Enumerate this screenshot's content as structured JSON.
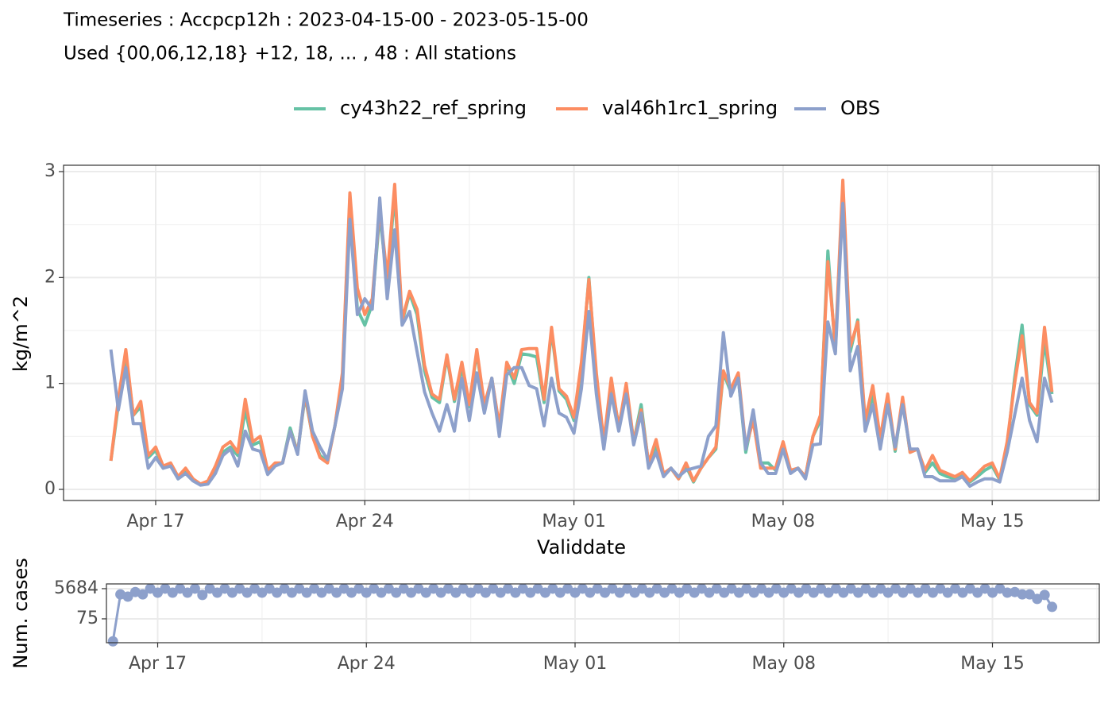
{
  "chart_data": [
    {
      "type": "line",
      "title": "Timeseries : Accpcp12h : 2023-04-15-00 - 2023-05-15-00",
      "subtitle": "Used {00,06,12,18} +12, 18, ... , 48 : All stations",
      "xlabel": "Validdate",
      "ylabel": "kg/m^2",
      "grid": true,
      "legend": "top",
      "x": [
        "2023-04-15 12:00",
        "2023-04-15 18:00",
        "2023-04-16 00:00",
        "2023-04-16 06:00",
        "2023-04-16 12:00",
        "2023-04-16 18:00",
        "2023-04-17 00:00",
        "2023-04-17 06:00",
        "2023-04-17 12:00",
        "2023-04-17 18:00",
        "2023-04-18 00:00",
        "2023-04-18 06:00",
        "2023-04-18 12:00",
        "2023-04-18 18:00",
        "2023-04-19 00:00",
        "2023-04-19 06:00",
        "2023-04-19 12:00",
        "2023-04-19 18:00",
        "2023-04-20 00:00",
        "2023-04-20 06:00",
        "2023-04-20 12:00",
        "2023-04-20 18:00",
        "2023-04-21 00:00",
        "2023-04-21 06:00",
        "2023-04-21 12:00",
        "2023-04-21 18:00",
        "2023-04-22 00:00",
        "2023-04-22 06:00",
        "2023-04-22 12:00",
        "2023-04-22 18:00",
        "2023-04-23 00:00",
        "2023-04-23 06:00",
        "2023-04-23 12:00",
        "2023-04-23 18:00",
        "2023-04-24 00:00",
        "2023-04-24 06:00",
        "2023-04-24 12:00",
        "2023-04-24 18:00",
        "2023-04-25 00:00",
        "2023-04-25 06:00",
        "2023-04-25 12:00",
        "2023-04-25 18:00",
        "2023-04-26 00:00",
        "2023-04-26 06:00",
        "2023-04-26 12:00",
        "2023-04-26 18:00",
        "2023-04-27 00:00",
        "2023-04-27 06:00",
        "2023-04-27 12:00",
        "2023-04-27 18:00",
        "2023-04-28 00:00",
        "2023-04-28 06:00",
        "2023-04-28 12:00",
        "2023-04-28 18:00",
        "2023-04-29 00:00",
        "2023-04-29 06:00",
        "2023-04-29 12:00",
        "2023-04-29 18:00",
        "2023-04-30 00:00",
        "2023-04-30 06:00",
        "2023-04-30 12:00",
        "2023-04-30 18:00",
        "2023-05-01 00:00",
        "2023-05-01 06:00",
        "2023-05-01 12:00",
        "2023-05-01 18:00",
        "2023-05-02 00:00",
        "2023-05-02 06:00",
        "2023-05-02 12:00",
        "2023-05-02 18:00",
        "2023-05-03 00:00",
        "2023-05-03 06:00",
        "2023-05-03 12:00",
        "2023-05-03 18:00",
        "2023-05-04 00:00",
        "2023-05-04 06:00",
        "2023-05-04 12:00",
        "2023-05-04 18:00",
        "2023-05-05 00:00",
        "2023-05-05 06:00",
        "2023-05-05 12:00",
        "2023-05-05 18:00",
        "2023-05-06 00:00",
        "2023-05-06 06:00",
        "2023-05-06 12:00",
        "2023-05-06 18:00",
        "2023-05-07 00:00",
        "2023-05-07 06:00",
        "2023-05-07 12:00",
        "2023-05-07 18:00",
        "2023-05-08 00:00",
        "2023-05-08 06:00",
        "2023-05-08 12:00",
        "2023-05-08 18:00",
        "2023-05-09 00:00",
        "2023-05-09 06:00",
        "2023-05-09 12:00",
        "2023-05-09 18:00",
        "2023-05-10 00:00",
        "2023-05-10 06:00",
        "2023-05-10 12:00",
        "2023-05-10 18:00",
        "2023-05-11 00:00",
        "2023-05-11 06:00",
        "2023-05-11 12:00",
        "2023-05-11 18:00",
        "2023-05-12 00:00",
        "2023-05-12 06:00",
        "2023-05-12 12:00",
        "2023-05-12 18:00",
        "2023-05-13 00:00",
        "2023-05-13 06:00",
        "2023-05-13 12:00",
        "2023-05-13 18:00",
        "2023-05-14 00:00",
        "2023-05-14 06:00",
        "2023-05-14 12:00",
        "2023-05-14 18:00",
        "2023-05-15 00:00",
        "2023-05-15 06:00",
        "2023-05-15 12:00",
        "2023-05-15 18:00",
        "2023-05-16 00:00",
        "2023-05-16 06:00",
        "2023-05-16 12:00",
        "2023-05-16 18:00",
        "2023-05-17 00:00"
      ],
      "series": [
        {
          "name": "cy43h22_ref_spring",
          "color": "#66c2a5",
          "values": [
            0.27,
            0.8,
            1.28,
            0.7,
            0.78,
            0.3,
            0.37,
            0.2,
            0.23,
            0.1,
            0.18,
            0.09,
            0.05,
            0.07,
            0.2,
            0.35,
            0.4,
            0.32,
            0.75,
            0.42,
            0.45,
            0.16,
            0.24,
            0.25,
            0.58,
            0.35,
            0.88,
            0.5,
            0.32,
            0.26,
            0.6,
            1.05,
            2.75,
            1.7,
            1.55,
            1.75,
            2.6,
            1.95,
            2.8,
            1.58,
            1.85,
            1.65,
            1.12,
            0.87,
            0.82,
            1.25,
            0.83,
            1.15,
            0.78,
            1.3,
            0.78,
            1.05,
            0.58,
            1.18,
            1.0,
            1.28,
            1.27,
            1.25,
            0.82,
            1.5,
            0.93,
            0.85,
            0.65,
            1.15,
            2.0,
            1.05,
            0.42,
            1.0,
            0.6,
            0.95,
            0.45,
            0.8,
            0.23,
            0.42,
            0.13,
            0.2,
            0.1,
            0.22,
            0.07,
            0.2,
            0.3,
            0.38,
            1.1,
            0.92,
            1.05,
            0.35,
            0.7,
            0.25,
            0.25,
            0.18,
            0.42,
            0.17,
            0.2,
            0.12,
            0.5,
            0.65,
            2.25,
            1.3,
            2.85,
            1.3,
            1.6,
            0.6,
            0.9,
            0.42,
            0.85,
            0.36,
            0.85,
            0.35,
            0.38,
            0.16,
            0.25,
            0.15,
            0.12,
            0.1,
            0.14,
            0.07,
            0.12,
            0.18,
            0.22,
            0.09,
            0.4,
            1.05,
            1.55,
            0.8,
            0.7,
            1.4,
            0.9
          ]
        },
        {
          "name": "val46h1rc1_spring",
          "color": "#fc8d62",
          "values": [
            0.27,
            0.85,
            1.32,
            0.7,
            0.83,
            0.32,
            0.4,
            0.22,
            0.25,
            0.12,
            0.2,
            0.1,
            0.05,
            0.08,
            0.22,
            0.4,
            0.45,
            0.35,
            0.85,
            0.45,
            0.5,
            0.18,
            0.25,
            0.25,
            0.55,
            0.35,
            0.9,
            0.5,
            0.3,
            0.25,
            0.6,
            1.1,
            2.8,
            1.9,
            1.65,
            1.8,
            2.65,
            2.0,
            2.88,
            1.6,
            1.87,
            1.7,
            1.17,
            0.9,
            0.85,
            1.27,
            0.85,
            1.2,
            0.8,
            1.32,
            0.8,
            1.05,
            0.6,
            1.2,
            1.05,
            1.32,
            1.33,
            1.33,
            0.85,
            1.53,
            0.95,
            0.88,
            0.68,
            1.2,
            1.98,
            1.1,
            0.45,
            1.05,
            0.58,
            1.0,
            0.45,
            0.75,
            0.25,
            0.47,
            0.15,
            0.2,
            0.1,
            0.25,
            0.08,
            0.2,
            0.3,
            0.4,
            1.12,
            0.95,
            1.1,
            0.4,
            0.65,
            0.2,
            0.2,
            0.2,
            0.45,
            0.18,
            0.2,
            0.12,
            0.5,
            0.7,
            2.15,
            1.35,
            2.92,
            1.35,
            1.58,
            0.65,
            0.98,
            0.48,
            0.9,
            0.38,
            0.87,
            0.35,
            0.38,
            0.18,
            0.32,
            0.18,
            0.15,
            0.12,
            0.16,
            0.08,
            0.15,
            0.22,
            0.25,
            0.1,
            0.45,
            1.0,
            1.45,
            0.82,
            0.72,
            1.53,
            0.92
          ]
        },
        {
          "name": "OBS",
          "color": "#8da0cb",
          "values": [
            1.32,
            0.75,
            1.15,
            0.62,
            0.62,
            0.2,
            0.3,
            0.2,
            0.22,
            0.1,
            0.15,
            0.08,
            0.04,
            0.05,
            0.15,
            0.32,
            0.38,
            0.22,
            0.55,
            0.38,
            0.36,
            0.14,
            0.22,
            0.25,
            0.55,
            0.33,
            0.93,
            0.55,
            0.4,
            0.28,
            0.6,
            0.95,
            2.55,
            1.65,
            1.8,
            1.7,
            2.75,
            1.8,
            2.45,
            1.55,
            1.68,
            1.3,
            0.92,
            0.72,
            0.55,
            0.8,
            0.55,
            1.05,
            0.65,
            1.1,
            0.72,
            1.05,
            0.5,
            1.08,
            1.15,
            1.15,
            0.98,
            0.95,
            0.6,
            1.05,
            0.72,
            0.68,
            0.53,
            0.95,
            1.68,
            0.9,
            0.38,
            0.9,
            0.55,
            0.9,
            0.42,
            0.72,
            0.2,
            0.35,
            0.12,
            0.2,
            0.12,
            0.18,
            0.2,
            0.22,
            0.5,
            0.6,
            1.48,
            0.88,
            1.05,
            0.38,
            0.75,
            0.25,
            0.15,
            0.15,
            0.38,
            0.15,
            0.2,
            0.1,
            0.42,
            0.43,
            1.58,
            1.28,
            2.7,
            1.12,
            1.35,
            0.55,
            0.8,
            0.38,
            0.8,
            0.4,
            0.8,
            0.38,
            0.38,
            0.12,
            0.12,
            0.08,
            0.08,
            0.08,
            0.12,
            0.03,
            0.07,
            0.1,
            0.1,
            0.07,
            0.35,
            0.7,
            1.05,
            0.65,
            0.45,
            1.05,
            0.82
          ]
        }
      ],
      "xlim": [
        "2023-04-13 22:00",
        "2023-05-18 14:00"
      ],
      "xticks": [
        {
          "value": "2023-04-17 00:00",
          "label": "Apr 17"
        },
        {
          "value": "2023-04-24 00:00",
          "label": "Apr 24"
        },
        {
          "value": "2023-05-01 00:00",
          "label": "May 01"
        },
        {
          "value": "2023-05-08 00:00",
          "label": "May 08"
        },
        {
          "value": "2023-05-15 00:00",
          "label": "May 15"
        }
      ],
      "ylim": [
        -0.105,
        3.06
      ],
      "yticks": [
        0,
        1,
        2,
        3
      ]
    },
    {
      "type": "line",
      "markers": true,
      "log": true,
      "ylabel": "Num. cases",
      "grid": true,
      "x": [
        "2023-04-15 12:00",
        "2023-04-15 18:00",
        "2023-04-16 00:00",
        "2023-04-16 06:00",
        "2023-04-16 12:00",
        "2023-04-16 18:00",
        "2023-04-17 00:00",
        "2023-04-17 06:00",
        "2023-04-17 12:00",
        "2023-04-17 18:00",
        "2023-04-18 00:00",
        "2023-04-18 06:00",
        "2023-04-18 12:00",
        "2023-04-18 18:00",
        "2023-04-19 00:00",
        "2023-04-19 06:00",
        "2023-04-19 12:00",
        "2023-04-19 18:00",
        "2023-04-20 00:00",
        "2023-04-20 06:00",
        "2023-04-20 12:00",
        "2023-04-20 18:00",
        "2023-04-21 00:00",
        "2023-04-21 06:00",
        "2023-04-21 12:00",
        "2023-04-21 18:00",
        "2023-04-22 00:00",
        "2023-04-22 06:00",
        "2023-04-22 12:00",
        "2023-04-22 18:00",
        "2023-04-23 00:00",
        "2023-04-23 06:00",
        "2023-04-23 12:00",
        "2023-04-23 18:00",
        "2023-04-24 00:00",
        "2023-04-24 06:00",
        "2023-04-24 12:00",
        "2023-04-24 18:00",
        "2023-04-25 00:00",
        "2023-04-25 06:00",
        "2023-04-25 12:00",
        "2023-04-25 18:00",
        "2023-04-26 00:00",
        "2023-04-26 06:00",
        "2023-04-26 12:00",
        "2023-04-26 18:00",
        "2023-04-27 00:00",
        "2023-04-27 06:00",
        "2023-04-27 12:00",
        "2023-04-27 18:00",
        "2023-04-28 00:00",
        "2023-04-28 06:00",
        "2023-04-28 12:00",
        "2023-04-28 18:00",
        "2023-04-29 00:00",
        "2023-04-29 06:00",
        "2023-04-29 12:00",
        "2023-04-29 18:00",
        "2023-04-30 00:00",
        "2023-04-30 06:00",
        "2023-04-30 12:00",
        "2023-04-30 18:00",
        "2023-05-01 00:00",
        "2023-05-01 06:00",
        "2023-05-01 12:00",
        "2023-05-01 18:00",
        "2023-05-02 00:00",
        "2023-05-02 06:00",
        "2023-05-02 12:00",
        "2023-05-02 18:00",
        "2023-05-03 00:00",
        "2023-05-03 06:00",
        "2023-05-03 12:00",
        "2023-05-03 18:00",
        "2023-05-04 00:00",
        "2023-05-04 06:00",
        "2023-05-04 12:00",
        "2023-05-04 18:00",
        "2023-05-05 00:00",
        "2023-05-05 06:00",
        "2023-05-05 12:00",
        "2023-05-05 18:00",
        "2023-05-06 00:00",
        "2023-05-06 06:00",
        "2023-05-06 12:00",
        "2023-05-06 18:00",
        "2023-05-07 00:00",
        "2023-05-07 06:00",
        "2023-05-07 12:00",
        "2023-05-07 18:00",
        "2023-05-08 00:00",
        "2023-05-08 06:00",
        "2023-05-08 12:00",
        "2023-05-08 18:00",
        "2023-05-09 00:00",
        "2023-05-09 06:00",
        "2023-05-09 12:00",
        "2023-05-09 18:00",
        "2023-05-10 00:00",
        "2023-05-10 06:00",
        "2023-05-10 12:00",
        "2023-05-10 18:00",
        "2023-05-11 00:00",
        "2023-05-11 06:00",
        "2023-05-11 12:00",
        "2023-05-11 18:00",
        "2023-05-12 00:00",
        "2023-05-12 06:00",
        "2023-05-12 12:00",
        "2023-05-12 18:00",
        "2023-05-13 00:00",
        "2023-05-13 06:00",
        "2023-05-13 12:00",
        "2023-05-13 18:00",
        "2023-05-14 00:00",
        "2023-05-14 06:00",
        "2023-05-14 12:00",
        "2023-05-14 18:00",
        "2023-05-15 00:00",
        "2023-05-15 06:00",
        "2023-05-15 12:00",
        "2023-05-15 18:00",
        "2023-05-16 00:00",
        "2023-05-16 06:00",
        "2023-05-16 12:00",
        "2023-05-16 18:00",
        "2023-05-17 00:00"
      ],
      "series": [
        {
          "color": "#8da0cb",
          "values": [
            3,
            2500,
            1800,
            3500,
            2500,
            5684,
            3200,
            5684,
            3200,
            5684,
            3200,
            5684,
            2300,
            5684,
            3200,
            5684,
            3200,
            5684,
            3200,
            5684,
            3200,
            5684,
            3200,
            5684,
            3200,
            5684,
            3200,
            5684,
            3200,
            5684,
            3200,
            5684,
            3200,
            5684,
            3200,
            5684,
            3200,
            5684,
            3200,
            5684,
            3200,
            5684,
            3200,
            5684,
            3200,
            5684,
            3200,
            5684,
            3200,
            5684,
            3200,
            5684,
            3200,
            5684,
            3200,
            5684,
            3200,
            5684,
            3200,
            5684,
            3200,
            5684,
            3200,
            5684,
            3200,
            5684,
            3200,
            5684,
            3200,
            5684,
            3200,
            5684,
            3200,
            5684,
            3200,
            5684,
            3200,
            5684,
            3200,
            5684,
            3200,
            5684,
            3200,
            5684,
            3200,
            5684,
            3200,
            5684,
            3200,
            5684,
            3200,
            5684,
            3200,
            5684,
            3200,
            5684,
            3200,
            5684,
            3200,
            5684,
            3200,
            5684,
            3200,
            5684,
            3200,
            5684,
            3200,
            5684,
            3200,
            5684,
            3200,
            5684,
            3200,
            5684,
            3200,
            5684,
            3200,
            5684,
            3200,
            5684,
            3200,
            3500,
            2500,
            2500,
            1300,
            2300,
            416
          ]
        }
      ],
      "xlim": [
        "2023-04-15 06:45",
        "2023-05-18 14:00"
      ],
      "xticks": [
        {
          "value": "2023-04-17 00:00",
          "label": "Apr 17"
        },
        {
          "value": "2023-04-24 00:00",
          "label": "Apr 24"
        },
        {
          "value": "2023-05-01 00:00",
          "label": "May 01"
        },
        {
          "value": "2023-05-08 00:00",
          "label": "May 08"
        },
        {
          "value": "2023-05-15 00:00",
          "label": "May 15"
        }
      ],
      "ylim": [
        2.45,
        11200
      ],
      "yticks": [
        75,
        5684
      ]
    }
  ]
}
